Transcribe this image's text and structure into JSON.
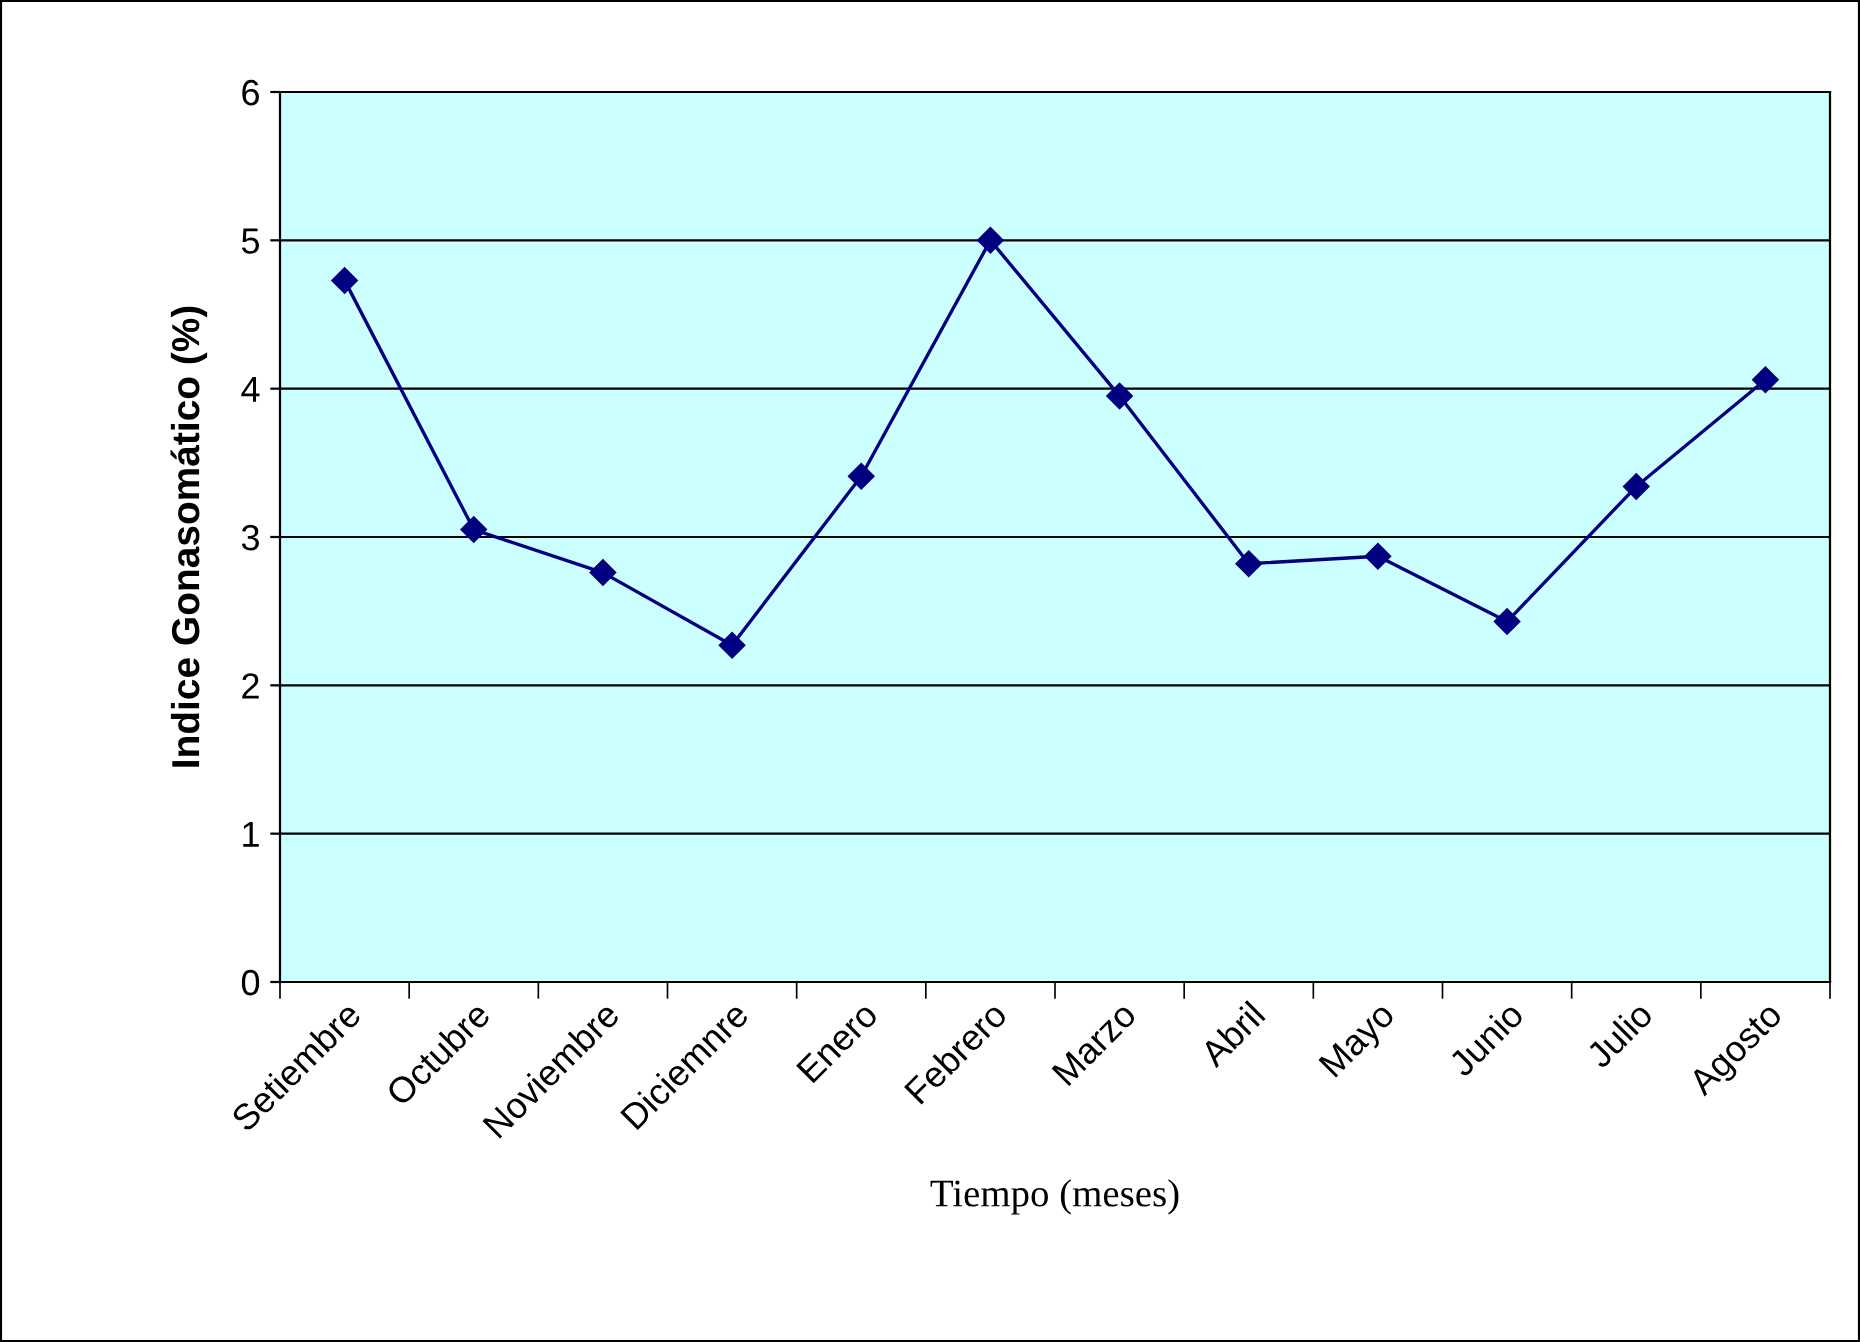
{
  "chart_data": {
    "type": "line",
    "xlabel": "Tiempo (meses)",
    "ylabel": "Indice Gonasomático (%)",
    "categories": [
      "Setiembre",
      "Octubre",
      "Noviembre",
      "Diciemnre",
      "Enero",
      "Febrero",
      "Marzo",
      "Abril",
      "Mayo",
      "Junio",
      "Julio",
      "Agosto"
    ],
    "series": [
      {
        "color": "#000080",
        "values": [
          4.73,
          3.05,
          2.76,
          2.27,
          3.41,
          5.0,
          3.95,
          2.82,
          2.87,
          2.43,
          3.34,
          4.06
        ]
      }
    ],
    "ylim": [
      0,
      6
    ],
    "yticks": [
      0,
      1,
      2,
      3,
      4,
      5,
      6
    ],
    "grid": "y",
    "marker": "diamond",
    "line_style": "solid"
  }
}
